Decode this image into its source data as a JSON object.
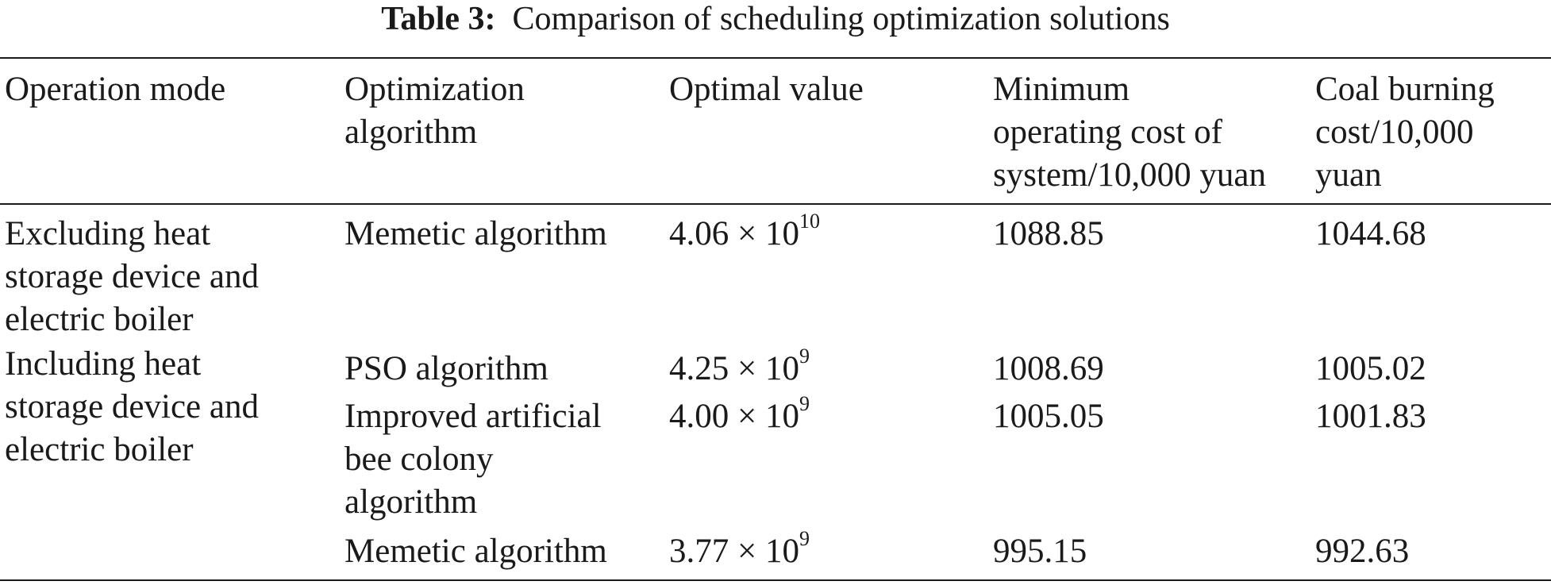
{
  "caption": {
    "label": "Table 3:",
    "title": "Comparison of scheduling optimization solutions"
  },
  "table": {
    "headers": [
      [
        "Operation mode"
      ],
      [
        "Optimization",
        "algorithm"
      ],
      [
        "Optimal value"
      ],
      [
        "Minimum",
        "operating cost of",
        "system/10,000 yuan"
      ],
      [
        "Coal burning",
        "cost/10,000",
        "yuan"
      ]
    ],
    "groups": [
      {
        "mode": [
          "Excluding heat",
          "storage device and",
          "electric boiler"
        ],
        "rows": [
          {
            "algorithm": [
              "Memetic algorithm"
            ],
            "optimal_mantissa": "4.06 × 10",
            "optimal_exponent": "10",
            "min_cost": "1088.85",
            "coal_cost": "1044.68"
          }
        ]
      },
      {
        "mode": [
          "Including heat",
          "storage device and",
          "electric boiler"
        ],
        "rows": [
          {
            "algorithm": [
              "PSO algorithm"
            ],
            "optimal_mantissa": "4.25 × 10",
            "optimal_exponent": "9",
            "min_cost": "1008.69",
            "coal_cost": "1005.02"
          },
          {
            "algorithm": [
              "Improved artificial",
              "bee colony",
              "algorithm"
            ],
            "optimal_mantissa": "4.00 × 10",
            "optimal_exponent": "9",
            "min_cost": "1005.05",
            "coal_cost": "1001.83"
          },
          {
            "algorithm": [
              "Memetic algorithm"
            ],
            "optimal_mantissa": "3.77 × 10",
            "optimal_exponent": "9",
            "min_cost": "995.15",
            "coal_cost": "992.63"
          }
        ]
      }
    ]
  }
}
